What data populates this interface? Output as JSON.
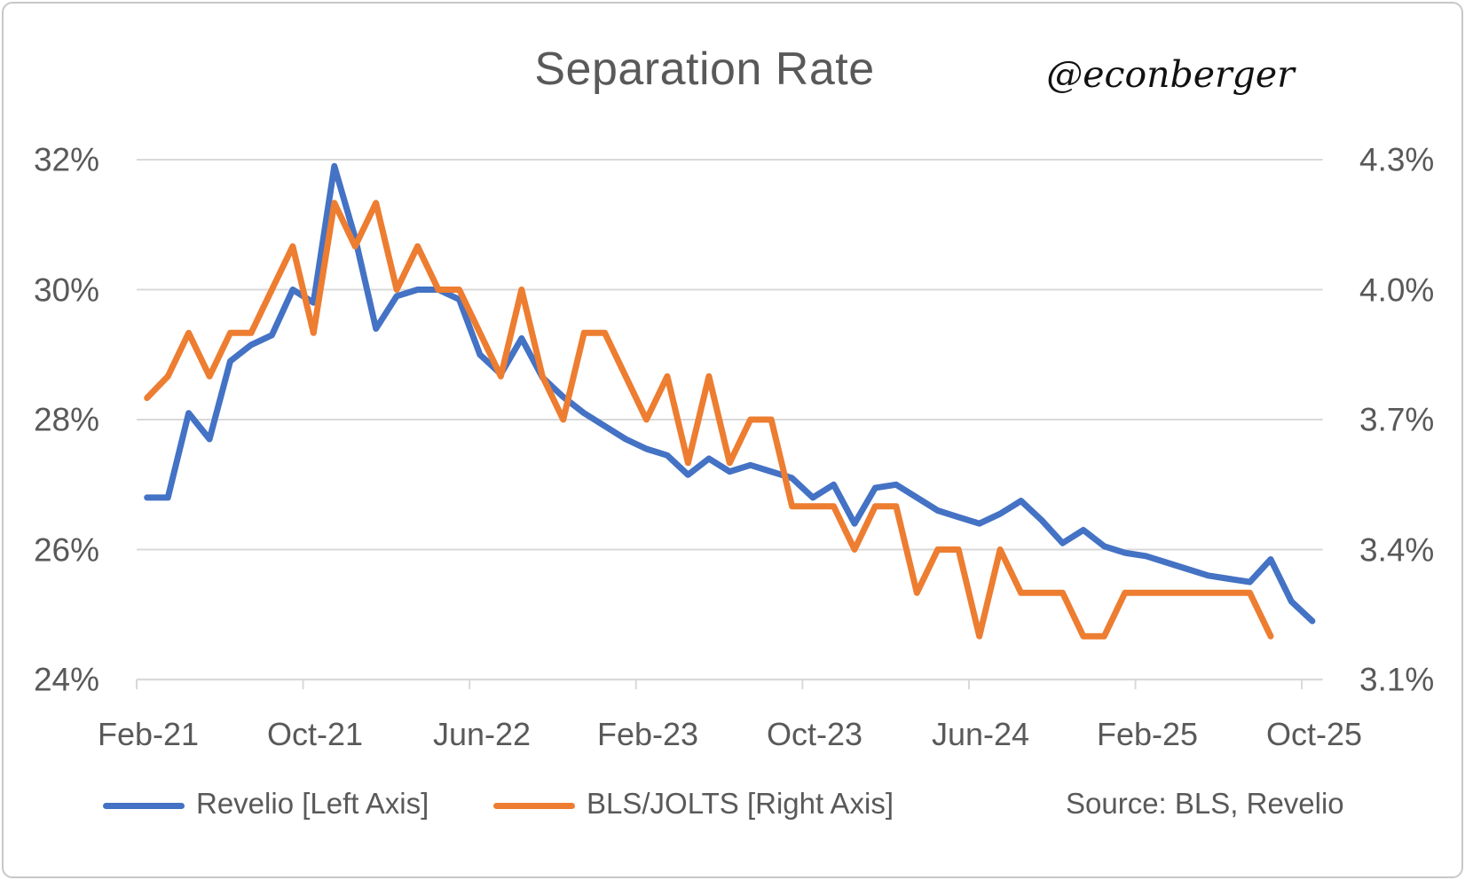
{
  "card": {
    "title": "Separation Rate",
    "attribution": "@econberger",
    "source": "Source: BLS, Revelio"
  },
  "colors": {
    "revelio_blue": "#4472C4",
    "bls_orange": "#ED7D31",
    "gridline_gray": "#D9D9D9",
    "text_gray": "#595959"
  },
  "legend": [
    {
      "label": "Revelio [Left Axis]",
      "color": "#4472C4"
    },
    {
      "label": "BLS/JOLTS [Right Axis]",
      "color": "#ED7D31"
    }
  ],
  "chart_data": {
    "type": "line",
    "title": "Separation Rate",
    "grid": true,
    "legend_position": "bottom",
    "x": [
      "Feb-21",
      "Mar-21",
      "Apr-21",
      "May-21",
      "Jun-21",
      "Jul-21",
      "Aug-21",
      "Sep-21",
      "Oct-21",
      "Nov-21",
      "Dec-21",
      "Jan-22",
      "Feb-22",
      "Mar-22",
      "Apr-22",
      "May-22",
      "Jun-22",
      "Jul-22",
      "Aug-22",
      "Sep-22",
      "Oct-22",
      "Nov-22",
      "Dec-22",
      "Jan-23",
      "Feb-23",
      "Mar-23",
      "Apr-23",
      "May-23",
      "Jun-23",
      "Jul-23",
      "Aug-23",
      "Sep-23",
      "Oct-23",
      "Nov-23",
      "Dec-23",
      "Jan-24",
      "Feb-24",
      "Mar-24",
      "Apr-24",
      "May-24",
      "Jun-24",
      "Jul-24",
      "Aug-24",
      "Sep-24",
      "Oct-24",
      "Nov-24",
      "Dec-24",
      "Jan-25",
      "Feb-25",
      "Mar-25",
      "Apr-25",
      "May-25",
      "Jun-25",
      "Jul-25",
      "Aug-25",
      "Sep-25",
      "Oct-25"
    ],
    "x_tick_labels": [
      "Feb-21",
      "Oct-21",
      "Jun-22",
      "Feb-23",
      "Oct-23",
      "Jun-24",
      "Feb-25",
      "Oct-25"
    ],
    "left_axis": {
      "ticks": [
        "32%",
        "30%",
        "28%",
        "26%",
        "24%"
      ],
      "range": [
        24,
        32
      ],
      "unit": "%"
    },
    "right_axis": {
      "ticks": [
        "4.3%",
        "4.0%",
        "3.7%",
        "3.4%",
        "3.1%"
      ],
      "range": [
        3.1,
        4.3
      ],
      "unit": "%"
    },
    "series": [
      {
        "name": "Revelio [Left Axis]",
        "axis": "left",
        "color": "#4472C4",
        "values": [
          26.8,
          26.8,
          28.1,
          27.7,
          28.9,
          29.15,
          29.3,
          30.0,
          29.8,
          31.9,
          30.8,
          29.4,
          29.9,
          30.0,
          30.0,
          29.85,
          29.0,
          28.7,
          29.25,
          28.65,
          28.35,
          28.1,
          27.9,
          27.7,
          27.55,
          27.45,
          27.15,
          27.4,
          27.2,
          27.3,
          27.2,
          27.1,
          26.8,
          27.0,
          26.4,
          26.95,
          27.0,
          26.8,
          26.6,
          26.5,
          26.4,
          26.55,
          26.75,
          26.45,
          26.1,
          26.3,
          26.05,
          25.95,
          25.9,
          25.8,
          25.7,
          25.6,
          25.55,
          25.5,
          25.85,
          25.2,
          24.9
        ]
      },
      {
        "name": "BLS/JOLTS [Right Axis]",
        "axis": "right",
        "color": "#ED7D31",
        "values": [
          3.75,
          3.8,
          3.9,
          3.8,
          3.9,
          3.9,
          4.0,
          4.1,
          3.9,
          4.2,
          4.1,
          4.2,
          4.0,
          4.1,
          4.0,
          4.0,
          3.9,
          3.8,
          4.0,
          3.8,
          3.7,
          3.9,
          3.9,
          3.8,
          3.7,
          3.8,
          3.6,
          3.8,
          3.6,
          3.7,
          3.7,
          3.5,
          3.5,
          3.5,
          3.4,
          3.5,
          3.5,
          3.3,
          3.4,
          3.4,
          3.2,
          3.4,
          3.3,
          3.3,
          3.3,
          3.2,
          3.2,
          3.3,
          3.3,
          3.3,
          3.3,
          3.3,
          3.3,
          3.3,
          3.2
        ]
      }
    ]
  }
}
